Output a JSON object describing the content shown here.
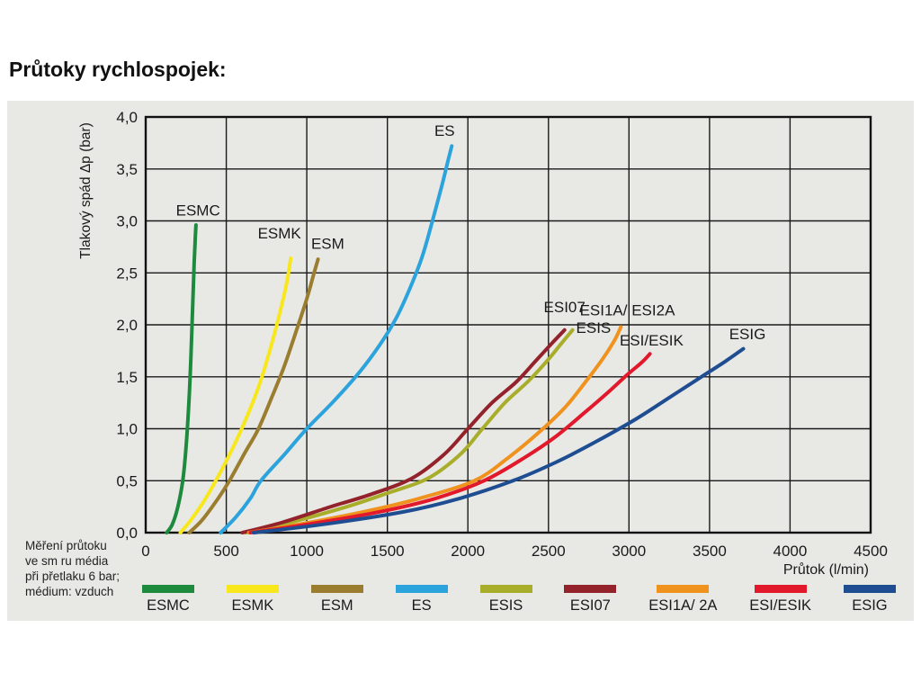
{
  "page": {
    "title": "Průtoky rychlospojek:",
    "note_lines": [
      "Měření průtoku",
      "ve sm ru média",
      "při přetlaku 6 bar;",
      "médium: vzduch"
    ]
  },
  "chart_data": {
    "type": "line",
    "title": "Průtoky rychlospojek:",
    "xlabel": "Průtok (l/min)",
    "ylabel": "Tlakový spád Δp (bar)",
    "xlim": [
      0,
      4500
    ],
    "ylim": [
      0,
      4.0
    ],
    "grid": true,
    "legend_position": "bottom",
    "x_ticks": [
      0,
      500,
      1000,
      1500,
      2000,
      2500,
      3000,
      3500,
      4000,
      4500
    ],
    "x_tick_labels": [
      "0",
      "500",
      "1000",
      "1500",
      "2000",
      "2500",
      "3000",
      "3500",
      "4000",
      "4500"
    ],
    "y_ticks": [
      0,
      0.5,
      1.0,
      1.5,
      2.0,
      2.5,
      3.0,
      3.5,
      4.0
    ],
    "y_tick_labels": [
      "0,0",
      "0,5",
      "1,0",
      "1,5",
      "2,0",
      "2,5",
      "3,0",
      "3,5",
      "4,0"
    ],
    "series": [
      {
        "name": "ESMC",
        "legend_label": "ESMC",
        "curve_label": "ESMC",
        "color": "#1d8a3e",
        "curve_label_xy": [
          325,
          3.05
        ],
        "points": [
          [
            130,
            0
          ],
          [
            165,
            0.08
          ],
          [
            200,
            0.25
          ],
          [
            230,
            0.5
          ],
          [
            252,
            0.85
          ],
          [
            268,
            1.25
          ],
          [
            281,
            1.7
          ],
          [
            292,
            2.2
          ],
          [
            301,
            2.6
          ],
          [
            308,
            2.85
          ],
          [
            312,
            2.96
          ]
        ]
      },
      {
        "name": "ESMK",
        "legend_label": "ESMK",
        "curve_label": "ESMK",
        "color": "#f7e71c",
        "curve_label_xy": [
          830,
          2.83
        ],
        "points": [
          [
            215,
            0
          ],
          [
            280,
            0.12
          ],
          [
            360,
            0.3
          ],
          [
            435,
            0.5
          ],
          [
            530,
            0.78
          ],
          [
            610,
            1.05
          ],
          [
            700,
            1.4
          ],
          [
            770,
            1.75
          ],
          [
            830,
            2.1
          ],
          [
            875,
            2.4
          ],
          [
            900,
            2.64
          ]
        ]
      },
      {
        "name": "ESM",
        "legend_label": "ESM",
        "curve_label": "ESM",
        "color": "#9b7d30",
        "curve_label_xy": [
          1130,
          2.73
        ],
        "points": [
          [
            270,
            0
          ],
          [
            350,
            0.12
          ],
          [
            450,
            0.33
          ],
          [
            520,
            0.5
          ],
          [
            620,
            0.78
          ],
          [
            700,
            1.0
          ],
          [
            790,
            1.33
          ],
          [
            860,
            1.6
          ],
          [
            930,
            1.92
          ],
          [
            1000,
            2.25
          ],
          [
            1045,
            2.5
          ],
          [
            1070,
            2.63
          ]
        ]
      },
      {
        "name": "ES",
        "legend_label": "ES",
        "curve_label": "ES",
        "color": "#2ba3dc",
        "curve_label_xy": [
          1855,
          3.82
        ],
        "points": [
          [
            465,
            0
          ],
          [
            560,
            0.15
          ],
          [
            650,
            0.33
          ],
          [
            715,
            0.5
          ],
          [
            860,
            0.75
          ],
          [
            1000,
            1.0
          ],
          [
            1170,
            1.27
          ],
          [
            1330,
            1.55
          ],
          [
            1450,
            1.8
          ],
          [
            1550,
            2.05
          ],
          [
            1640,
            2.35
          ],
          [
            1715,
            2.65
          ],
          [
            1780,
            3.0
          ],
          [
            1840,
            3.35
          ],
          [
            1880,
            3.6
          ],
          [
            1900,
            3.72
          ]
        ]
      },
      {
        "name": "ESIS",
        "legend_label": "ESIS",
        "curve_label": "ESIS",
        "color": "#a8ad2a",
        "curve_label_xy": [
          2780,
          1.92
        ],
        "points": [
          [
            620,
            0
          ],
          [
            900,
            0.1
          ],
          [
            1250,
            0.25
          ],
          [
            1500,
            0.38
          ],
          [
            1750,
            0.52
          ],
          [
            1950,
            0.75
          ],
          [
            2090,
            1.0
          ],
          [
            2230,
            1.25
          ],
          [
            2370,
            1.45
          ],
          [
            2490,
            1.65
          ],
          [
            2580,
            1.82
          ],
          [
            2650,
            1.95
          ]
        ]
      },
      {
        "name": "ESI07",
        "legend_label": "ESI07",
        "curve_label": "ESI07",
        "color": "#93222b",
        "curve_label_xy": [
          2600,
          2.12
        ],
        "points": [
          [
            600,
            0
          ],
          [
            850,
            0.1
          ],
          [
            1150,
            0.25
          ],
          [
            1400,
            0.37
          ],
          [
            1650,
            0.52
          ],
          [
            1850,
            0.75
          ],
          [
            2000,
            1.0
          ],
          [
            2150,
            1.25
          ],
          [
            2300,
            1.45
          ],
          [
            2420,
            1.65
          ],
          [
            2520,
            1.82
          ],
          [
            2600,
            1.95
          ]
        ]
      },
      {
        "name": "ESI1A-2A",
        "legend_label": "ESI1A/ 2A",
        "curve_label": "ESI1A/ ESI2A",
        "color": "#f0921e",
        "curve_label_xy": [
          2990,
          2.09
        ],
        "points": [
          [
            640,
            0
          ],
          [
            950,
            0.08
          ],
          [
            1350,
            0.2
          ],
          [
            1700,
            0.33
          ],
          [
            2040,
            0.5
          ],
          [
            2250,
            0.72
          ],
          [
            2430,
            0.95
          ],
          [
            2600,
            1.2
          ],
          [
            2730,
            1.45
          ],
          [
            2840,
            1.68
          ],
          [
            2910,
            1.85
          ],
          [
            2950,
            1.98
          ]
        ]
      },
      {
        "name": "ESI-ESIK",
        "legend_label": "ESI/ESIK",
        "curve_label": "ESI/ESIK",
        "color": "#e2182b",
        "curve_label_xy": [
          3140,
          1.8
        ],
        "points": [
          [
            650,
            0
          ],
          [
            1000,
            0.08
          ],
          [
            1450,
            0.2
          ],
          [
            1800,
            0.33
          ],
          [
            2100,
            0.5
          ],
          [
            2350,
            0.72
          ],
          [
            2550,
            0.93
          ],
          [
            2720,
            1.15
          ],
          [
            2870,
            1.35
          ],
          [
            2990,
            1.52
          ],
          [
            3080,
            1.64
          ],
          [
            3130,
            1.72
          ]
        ]
      },
      {
        "name": "ESIG",
        "legend_label": "ESIG",
        "curve_label": "ESIG",
        "color": "#1e4d92",
        "curve_label_xy": [
          3735,
          1.86
        ],
        "points": [
          [
            670,
            0
          ],
          [
            1100,
            0.08
          ],
          [
            1600,
            0.2
          ],
          [
            1950,
            0.33
          ],
          [
            2280,
            0.5
          ],
          [
            2550,
            0.68
          ],
          [
            2800,
            0.88
          ],
          [
            3050,
            1.1
          ],
          [
            3250,
            1.3
          ],
          [
            3450,
            1.5
          ],
          [
            3600,
            1.65
          ],
          [
            3710,
            1.77
          ]
        ]
      }
    ],
    "colors": {
      "panel_bg": "#e8e8e5",
      "grid": "#1a1a1a",
      "text": "#1a1a1a"
    }
  }
}
